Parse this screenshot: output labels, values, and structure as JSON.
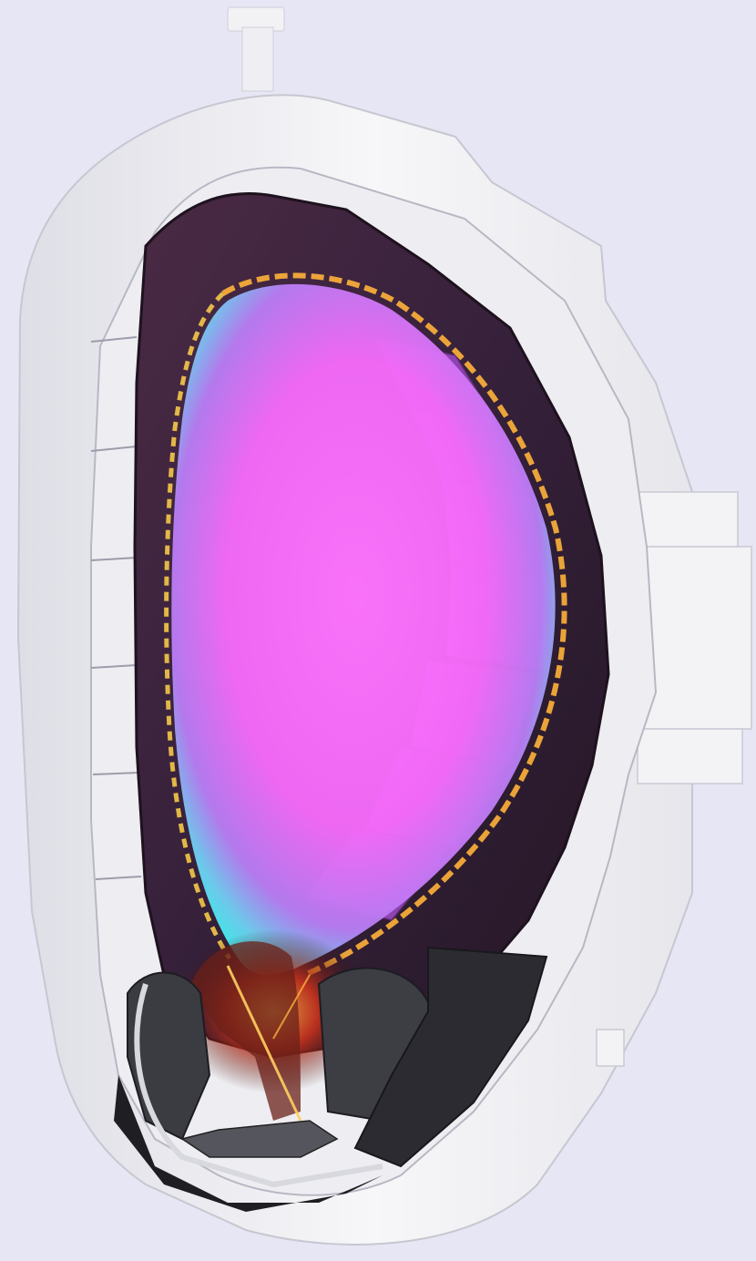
{
  "scene": {
    "subject": "tokamak-cross-section",
    "background_color": "#e6e6f4",
    "vessel_color": "#f4f4f6",
    "vessel_shadow_color": "#c9c9d3",
    "wall_tile_color": "#3a2438",
    "plasma_core_color": "#ff6dff",
    "plasma_mid_color": "#b36cf2",
    "plasma_edge_color": "#49e6ee",
    "scrape_off_color": "#ff9d2a",
    "divertor_glow_color": "#d2271b"
  }
}
